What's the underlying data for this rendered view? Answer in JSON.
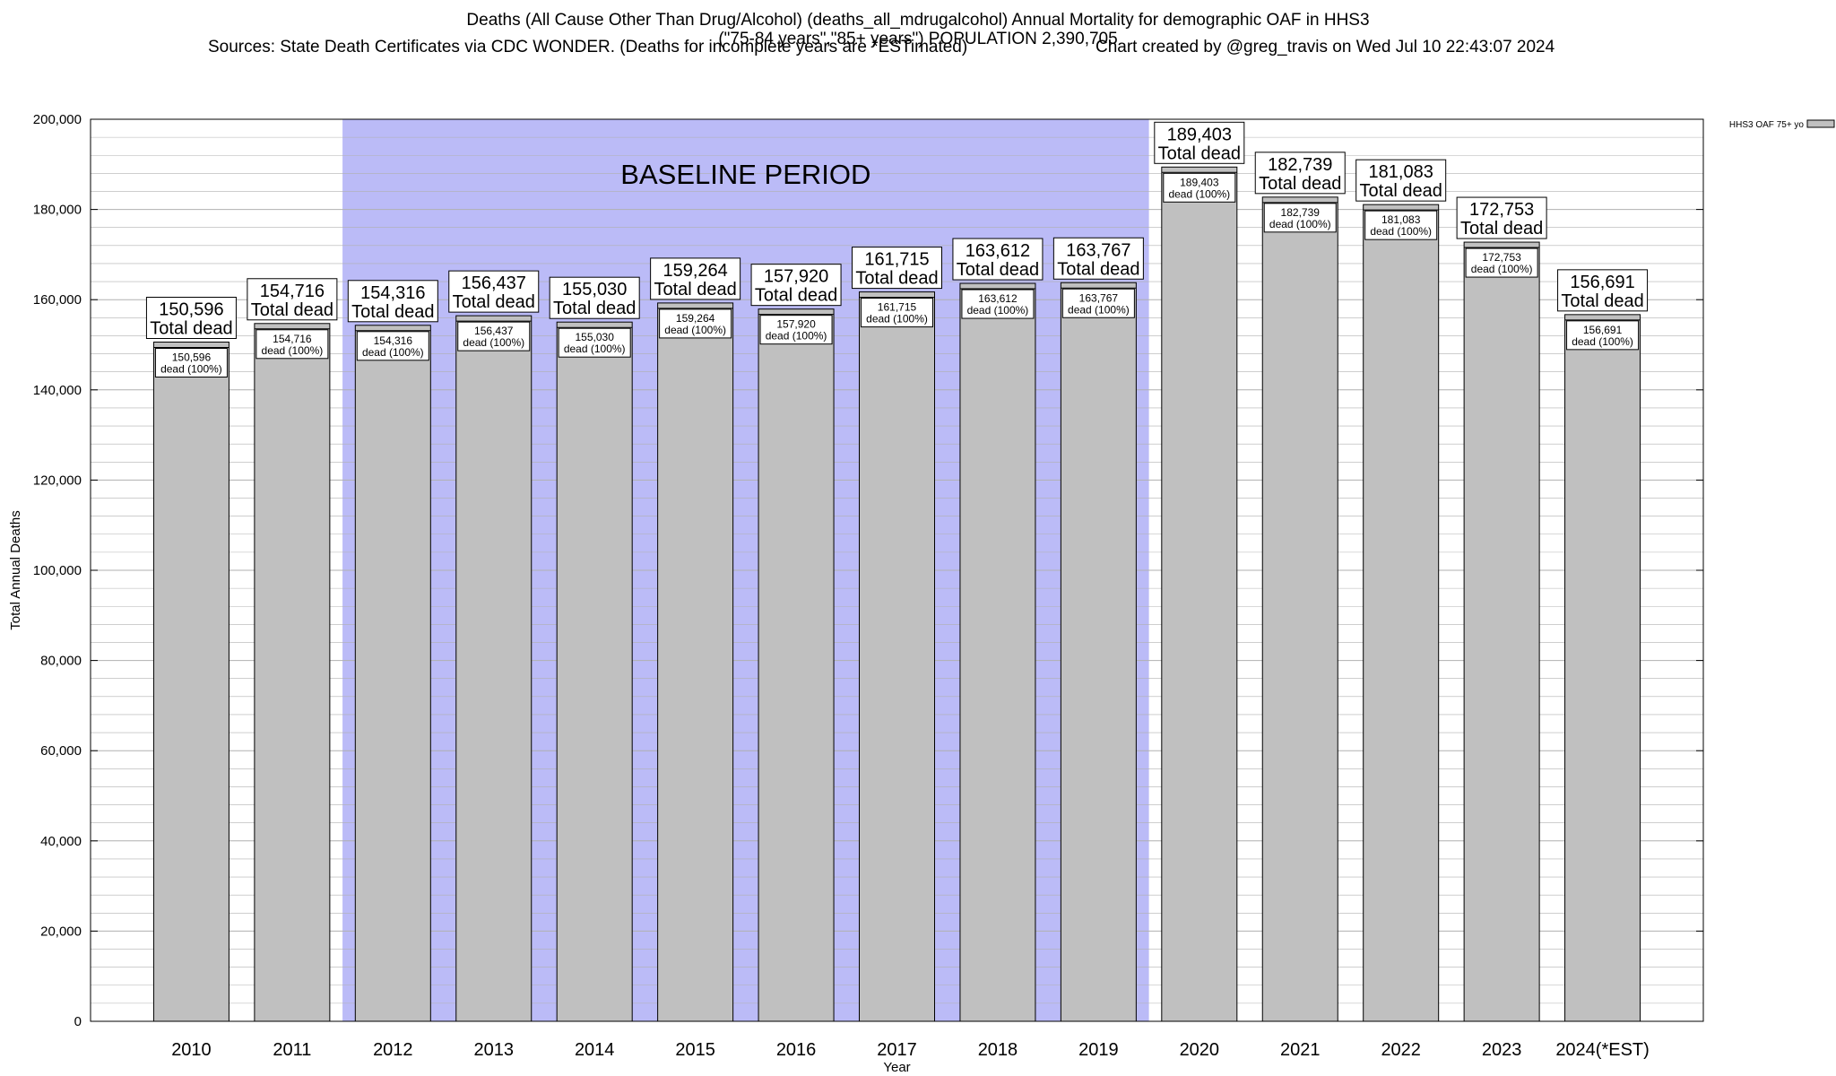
{
  "header": {
    "line1": "Deaths (All Cause Other Than Drug/Alcohol) (deaths_all_mdrugalcohol) Annual Mortality for demographic OAF in HHS3",
    "line2": "(\"75-84 years\",\"85+ years\") POPULATION 2,390,705",
    "line3_left": "Sources: State Death Certificates via CDC WONDER. (Deaths for incomplete years are *ESTimated)",
    "line3_right": "Chart created by @greg_travis on Wed Jul 10 22:43:07 2024"
  },
  "colors": {
    "bar_fill": "#c0c0c0",
    "baseline_fill": "#bbbbf7",
    "grid": "#b0b0b0"
  },
  "chart_data": {
    "type": "bar",
    "title": "Deaths (All Cause Other Than Drug/Alcohol) (deaths_all_mdrugalcohol) Annual Mortality for demographic OAF in HHS3",
    "xlabel": "Year",
    "ylabel": "Total Annual Deaths",
    "ylim": [
      0,
      200000
    ],
    "yticks": [
      0,
      20000,
      40000,
      60000,
      80000,
      100000,
      120000,
      140000,
      160000,
      180000,
      200000
    ],
    "ytick_labels": [
      "0",
      "20,000",
      "40,000",
      "60,000",
      "80,000",
      "100,000",
      "120,000",
      "140,000",
      "160,000",
      "180,000",
      "200,000"
    ],
    "grid": true,
    "legend": {
      "position": "top-right",
      "label": "HHS3 OAF 75+ yo"
    },
    "baseline": {
      "label": "BASELINE PERIOD",
      "start": "2012",
      "end": "2019"
    },
    "categories": [
      "2010",
      "2011",
      "2012",
      "2013",
      "2014",
      "2015",
      "2016",
      "2017",
      "2018",
      "2019",
      "2020",
      "2021",
      "2022",
      "2023",
      "2024(*EST)"
    ],
    "series": [
      {
        "name": "HHS3 OAF 75+ yo",
        "values": [
          150596,
          154716,
          154316,
          156437,
          155030,
          159264,
          157920,
          161715,
          163612,
          163767,
          189403,
          182739,
          181083,
          172753,
          156691
        ],
        "value_labels": [
          "150,596",
          "154,716",
          "154,316",
          "156,437",
          "155,030",
          "159,264",
          "157,920",
          "161,715",
          "163,612",
          "163,767",
          "189,403",
          "182,739",
          "181,083",
          "172,753",
          "156,691"
        ]
      }
    ],
    "top_label_suffix": "Total dead",
    "inner_label_suffix": "dead (100%)"
  }
}
